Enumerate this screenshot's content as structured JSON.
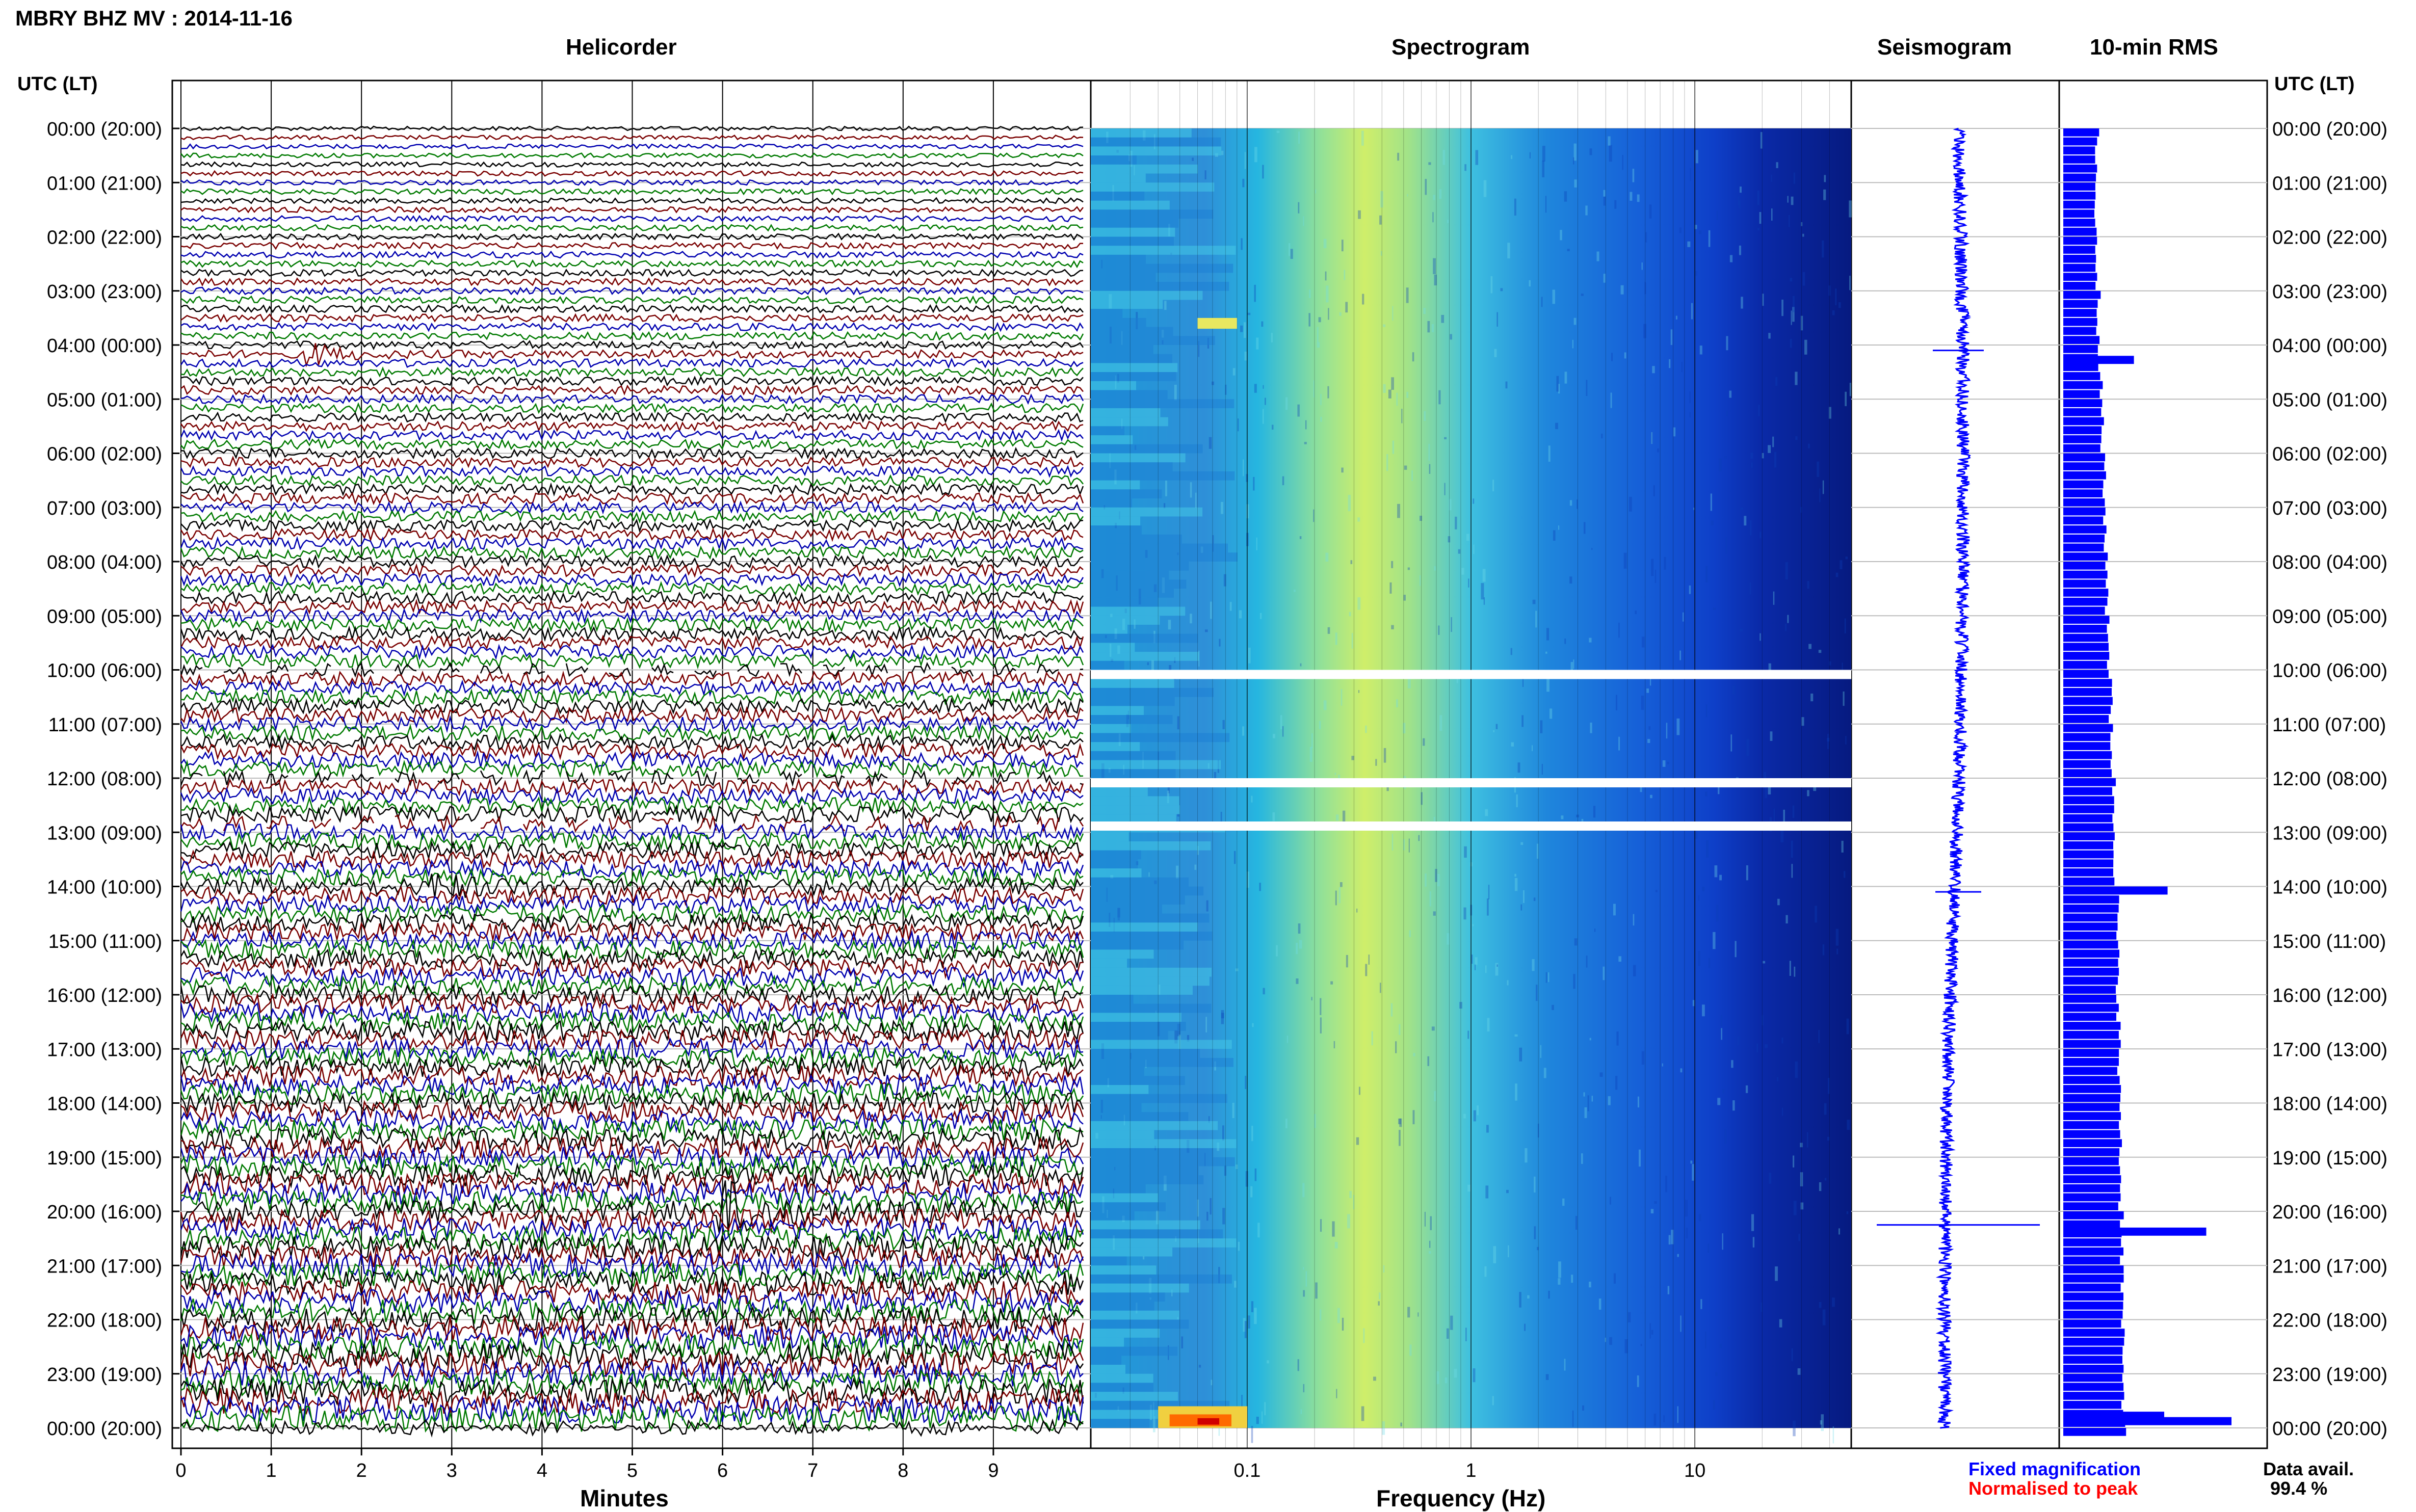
{
  "page": {
    "title": "MBRY BHZ MV : 2014-11-16",
    "utc_header_left": "UTC (LT)",
    "utc_header_right": "UTC (LT)",
    "data_avail_label": "Data avail.",
    "data_avail_value": "99.4 %",
    "legend_fixed": "Fixed magnification",
    "legend_normalised": "Normalised to peak",
    "colors": {
      "fixed": "#0000ff",
      "normalised": "#ff0000",
      "trace_cycle": [
        "#000000",
        "#7a0000",
        "#0000b0",
        "#007a00"
      ],
      "rms_bar": "#0000ff",
      "seismogram": "#0000ff"
    }
  },
  "chart_data": [
    {
      "type": "line",
      "title": "Helicorder",
      "xlabel": "Minutes",
      "xlim": [
        0,
        10
      ],
      "xticks": [
        "0",
        "1",
        "2",
        "3",
        "4",
        "5",
        "6",
        "7",
        "8",
        "9"
      ],
      "rows_per_hour": 6,
      "row_minutes": 10,
      "time_labels": [
        "00:00 (20:00)",
        "01:00 (21:00)",
        "02:00 (22:00)",
        "03:00 (23:00)",
        "04:00 (00:00)",
        "05:00 (01:00)",
        "06:00 (02:00)",
        "07:00 (03:00)",
        "08:00 (04:00)",
        "09:00 (05:00)",
        "10:00 (06:00)",
        "11:00 (07:00)",
        "12:00 (08:00)",
        "13:00 (09:00)",
        "14:00 (10:00)",
        "15:00 (11:00)",
        "16:00 (12:00)",
        "17:00 (13:00)",
        "18:00 (14:00)",
        "19:00 (15:00)",
        "20:00 (16:00)",
        "21:00 (17:00)",
        "22:00 (18:00)",
        "23:00 (19:00)",
        "00:00 (20:00)"
      ],
      "events": [
        {
          "time": "04:10",
          "minute": 1.5,
          "amplitude": "medium"
        },
        {
          "time": "14:00",
          "minute": 2.9,
          "amplitude": "medium"
        },
        {
          "time": "20:00",
          "minute": 6.1,
          "amplitude": "large"
        }
      ],
      "gaps_hours": [
        10.0,
        12.0,
        12.8
      ]
    },
    {
      "type": "heatmap",
      "title": "Spectrogram",
      "xlabel": "Frequency (Hz)",
      "xscale": "log",
      "xlim": [
        0.02,
        50
      ],
      "xticks": [
        "0.1",
        "1",
        "10"
      ],
      "colormap": "jet",
      "peak_frequency_hz": 0.3,
      "gaps_hours": [
        10.0,
        12.0,
        12.8
      ]
    },
    {
      "type": "line",
      "title": "Seismogram",
      "spike_hours": [
        4.1,
        14.1,
        20.25
      ]
    },
    {
      "type": "bar",
      "title": "10-min RMS",
      "orientation": "horizontal",
      "hourly_rms": [
        0.2,
        0.19,
        0.2,
        0.21,
        0.22,
        0.23,
        0.24,
        0.25,
        0.26,
        0.27,
        0.28,
        0.29,
        0.3,
        0.31,
        0.32,
        0.32,
        0.33,
        0.33,
        0.34,
        0.34,
        0.35,
        0.35,
        0.35,
        0.36,
        0.36
      ],
      "spikes": [
        {
          "hour": 4.2,
          "value": 0.42
        },
        {
          "hour": 14.0,
          "value": 0.62
        },
        {
          "hour": 20.3,
          "value": 0.85
        },
        {
          "hour": 23.7,
          "value": 0.6
        },
        {
          "hour": 23.8,
          "value": 1.0
        }
      ]
    }
  ]
}
